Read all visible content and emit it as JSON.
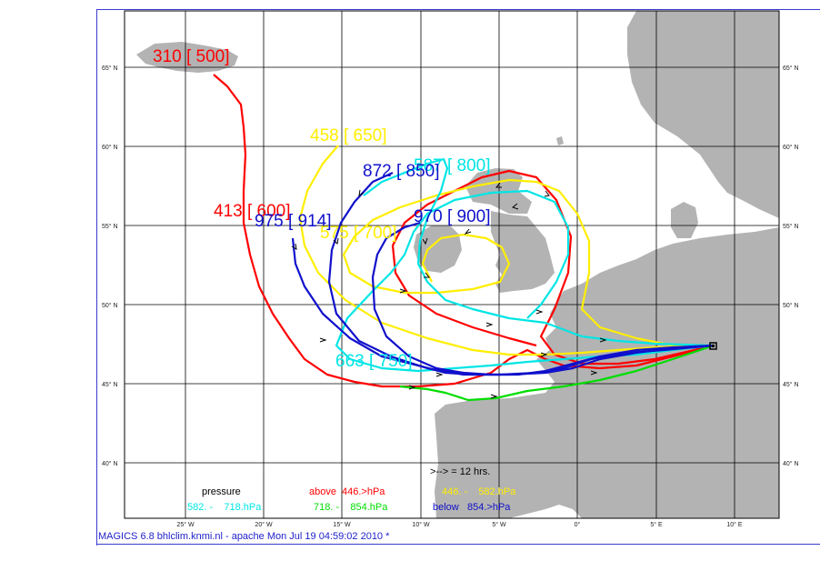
{
  "map": {
    "lat_labels_left": [
      "65° N",
      "60° N",
      "55° N",
      "50° N",
      "45° N",
      "40° N"
    ],
    "lat_labels_right": [
      "65° N",
      "60° N",
      "55° N",
      "50° N",
      "45° N",
      "40° N"
    ],
    "lon_labels": [
      "25° W",
      "20° W",
      "15° W",
      "10° W",
      "5° W",
      "0°",
      "5° E",
      "10° E"
    ],
    "land_color": "#b3b3b3",
    "grid_color": "#000000"
  },
  "trajectories": [
    {
      "label": "310 [ 500]",
      "color": "#ff0000",
      "marker_name": "end-marker-500"
    },
    {
      "label": "458 [ 650]",
      "color": "#ffee00",
      "marker_name": "end-marker-650"
    },
    {
      "label": "587 [ 800]",
      "color": "#00e5e5",
      "marker_name": "end-marker-800"
    },
    {
      "label": "872 [ 850]",
      "color": "#1010cc",
      "marker_name": "end-marker-850"
    },
    {
      "label": "413 [ 600]",
      "color": "#ff0000",
      "marker_name": "end-marker-600"
    },
    {
      "label": "975 [ 914]",
      "color": "#1010cc",
      "marker_name": "end-marker-914"
    },
    {
      "label": "970 [ 900]",
      "color": "#1010cc",
      "marker_name": "end-marker-900"
    },
    {
      "label": "575 [ 700]",
      "color": "#ffee00",
      "marker_name": "end-marker-700"
    },
    {
      "label": "663 [ 750]",
      "color": "#00e5e5",
      "marker_name": "end-marker-750"
    }
  ],
  "legend": {
    "arrow_note": ">--> = 12 hrs.",
    "pressure_title": "pressure",
    "above_prefix": "above",
    "above_value": "446.>hPa",
    "yellow_range": "446. -    582.hPa",
    "cyan_range": "582. -    718.hPa",
    "green_range": "718. -    854.hPa",
    "below_prefix": "below",
    "below_value": "854.>hPa",
    "colors": {
      "red": "#ff0000",
      "yellow": "#ffee00",
      "cyan": "#00e5e5",
      "green": "#00dd00",
      "blue": "#1010cc",
      "black": "#000000"
    }
  },
  "footer": {
    "text": "MAGICS 6.8 bhlclim.knmi.nl - apache Mon Jul 19 04:59:02 2010 *"
  }
}
